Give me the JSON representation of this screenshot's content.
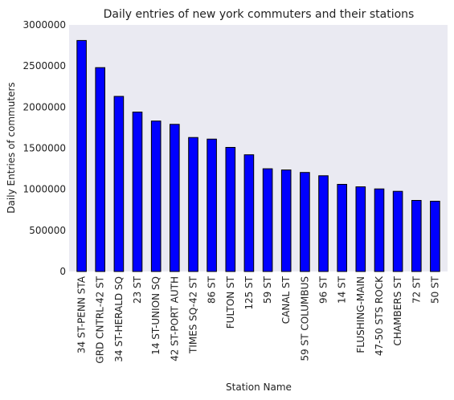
{
  "chart_data": {
    "type": "bar",
    "title": "Daily entries of new york commuters and their stations",
    "xlabel": "Station Name",
    "ylabel": "Daily Entries of commuters",
    "ylim": [
      0,
      3000000
    ],
    "yticks": [
      "0",
      "500000",
      "1000000",
      "1500000",
      "2000000",
      "2500000",
      "3000000"
    ],
    "grid": false,
    "categories": [
      "34 ST-PENN STA",
      "GRD CNTRL-42 ST",
      "34 ST-HERALD SQ",
      "23 ST",
      "14 ST-UNION SQ",
      "42 ST-PORT AUTH",
      "TIMES SQ-42 ST",
      "86 ST",
      "FULTON ST",
      "125 ST",
      "59 ST",
      "CANAL ST",
      "59 ST COLUMBUS",
      "96 ST",
      "14 ST",
      "FLUSHING-MAIN",
      "47-50 STS ROCK",
      "CHAMBERS ST",
      "72 ST",
      "50 ST"
    ],
    "values": [
      2810000,
      2480000,
      2130000,
      1940000,
      1830000,
      1790000,
      1630000,
      1610000,
      1510000,
      1420000,
      1250000,
      1235000,
      1205000,
      1165000,
      1060000,
      1030000,
      1005000,
      975000,
      865000,
      855000
    ],
    "colors": {
      "bar": "#0000ff",
      "bar_edge": "#000000",
      "plot_bg": "#eaeaf2"
    }
  }
}
